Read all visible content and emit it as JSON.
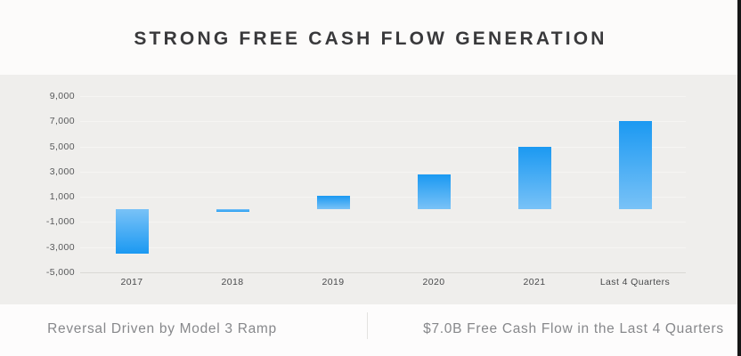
{
  "title": "STRONG FREE CASH FLOW GENERATION",
  "footer": {
    "left": "Reversal Driven by Model 3 Ramp",
    "right": "$7.0B Free Cash Flow in the Last 4 Quarters"
  },
  "chart_data": {
    "type": "bar",
    "categories": [
      "2017",
      "2018",
      "2019",
      "2020",
      "2021",
      "Last 4 Quarters"
    ],
    "values": [
      -3500,
      -200,
      1100,
      2800,
      5000,
      7000
    ],
    "title": "STRONG FREE CASH FLOW GENERATION",
    "xlabel": "",
    "ylabel": "",
    "ylim": [
      -5000,
      9000
    ],
    "yticks": [
      9000,
      7000,
      5000,
      3000,
      1000,
      -1000,
      -3000,
      -5000
    ],
    "ytick_labels": [
      "9,000",
      "7,000",
      "5,000",
      "3,000",
      "1,000",
      "-1,000",
      "-3,000",
      "-5,000"
    ],
    "grid": true,
    "legend": false
  },
  "colors": {
    "bar_dark": "#1b99f2",
    "bar_light": "#79c2f7",
    "chart_band_bg": "#efeeec",
    "title_text": "#39393b",
    "axis_text": "#57585a",
    "footer_text": "#87888b"
  }
}
